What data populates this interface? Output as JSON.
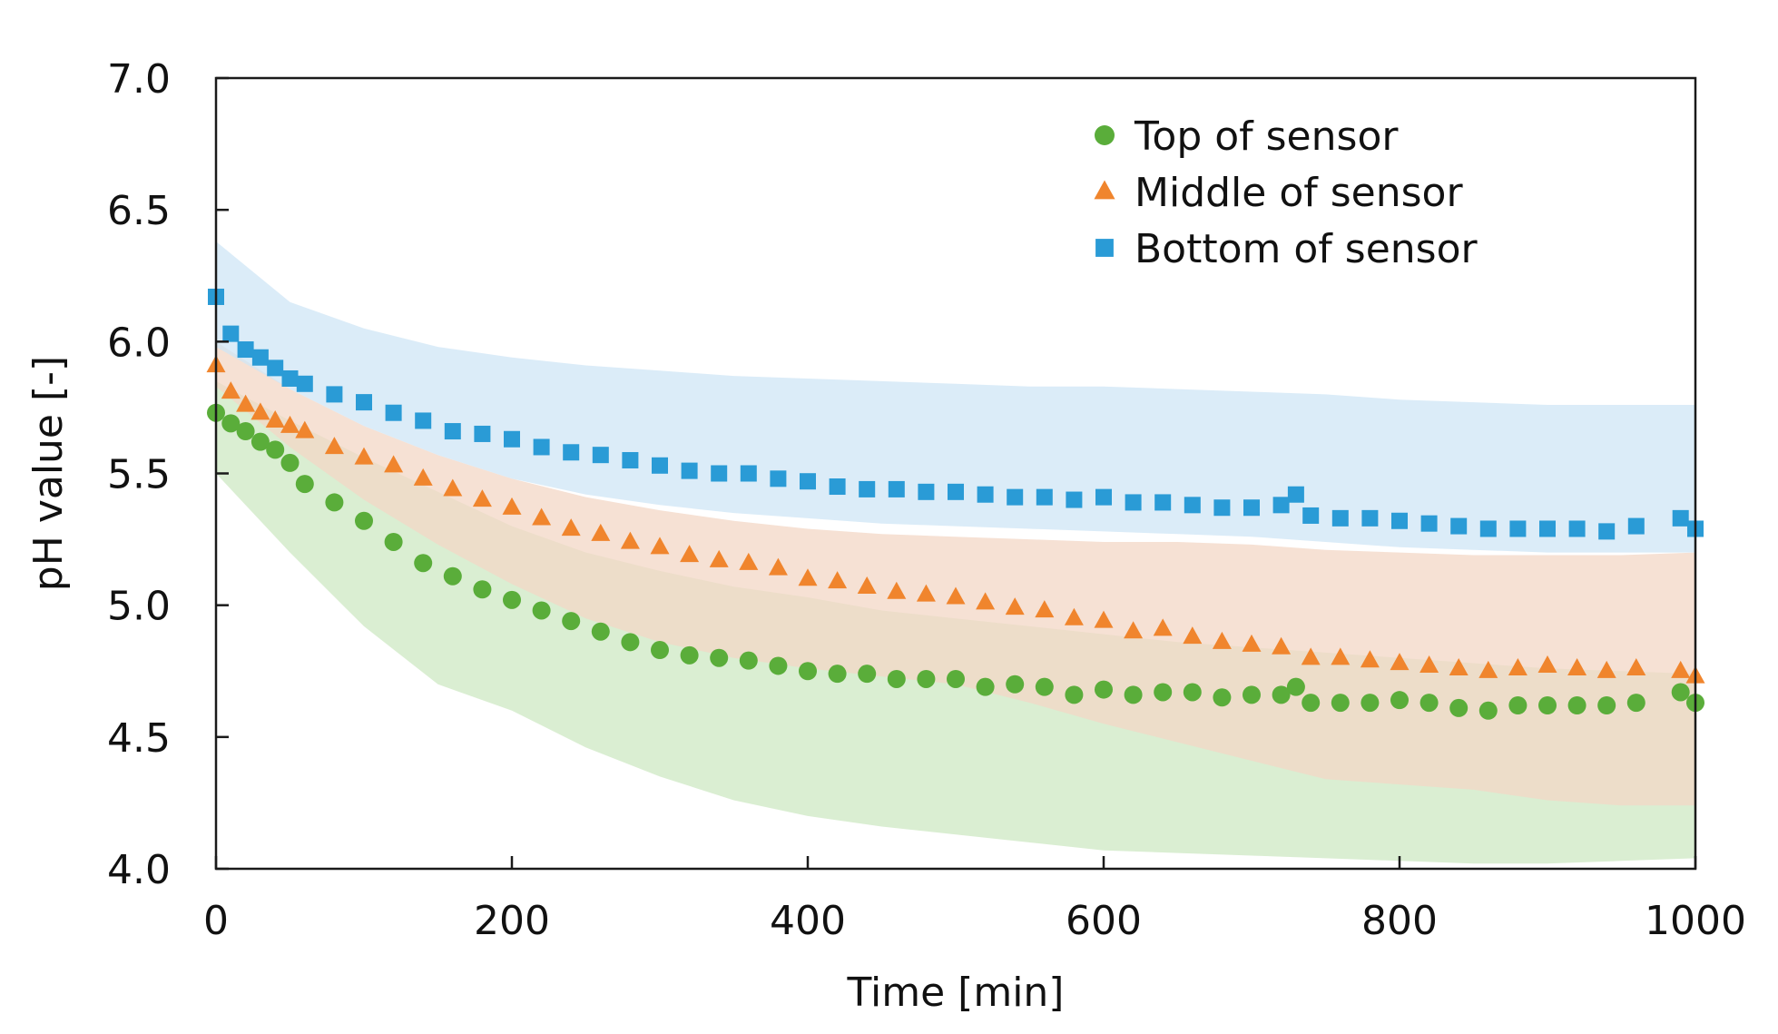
{
  "chart_data": {
    "type": "scatter",
    "title": "",
    "xlabel": "Time [min]",
    "ylabel": "pH value [-]",
    "xlim": [
      0,
      1000
    ],
    "ylim": [
      4.0,
      7.0
    ],
    "x_ticks": [
      0,
      200,
      400,
      600,
      800,
      1000
    ],
    "y_ticks": [
      4.0,
      4.5,
      5.0,
      5.5,
      6.0,
      6.5,
      7.0
    ],
    "x_tick_labels": [
      "0",
      "200",
      "400",
      "600",
      "800",
      "1000"
    ],
    "y_tick_labels": [
      "4.0",
      "4.5",
      "5.0",
      "5.5",
      "6.0",
      "6.5",
      "7.0"
    ],
    "grid": false,
    "legend_position": "top-right",
    "series": [
      {
        "name": "Top of sensor",
        "marker": "circle",
        "color": "#5aad3a",
        "band_color": "#cde8c3",
        "x": [
          0,
          10,
          20,
          30,
          40,
          50,
          60,
          80,
          100,
          120,
          140,
          160,
          180,
          200,
          220,
          240,
          260,
          280,
          300,
          320,
          340,
          360,
          380,
          400,
          420,
          440,
          460,
          480,
          500,
          520,
          540,
          560,
          580,
          600,
          620,
          640,
          660,
          680,
          700,
          720,
          730,
          740,
          760,
          780,
          800,
          820,
          840,
          860,
          880,
          900,
          920,
          940,
          960,
          990,
          1000
        ],
        "y": [
          5.73,
          5.69,
          5.66,
          5.62,
          5.59,
          5.54,
          5.46,
          5.39,
          5.32,
          5.24,
          5.16,
          5.11,
          5.06,
          5.02,
          4.98,
          4.94,
          4.9,
          4.86,
          4.83,
          4.81,
          4.8,
          4.79,
          4.77,
          4.75,
          4.74,
          4.74,
          4.72,
          4.72,
          4.72,
          4.69,
          4.7,
          4.69,
          4.66,
          4.68,
          4.66,
          4.67,
          4.67,
          4.65,
          4.66,
          4.66,
          4.69,
          4.63,
          4.63,
          4.63,
          4.64,
          4.63,
          4.61,
          4.6,
          4.62,
          4.62,
          4.62,
          4.62,
          4.63,
          4.67,
          4.63
        ],
        "band_x": [
          0,
          50,
          100,
          150,
          200,
          250,
          300,
          350,
          400,
          450,
          500,
          550,
          600,
          650,
          700,
          750,
          800,
          850,
          900,
          950,
          1000
        ],
        "band_upper": [
          5.85,
          5.7,
          5.56,
          5.43,
          5.3,
          5.2,
          5.13,
          5.07,
          5.03,
          4.98,
          4.95,
          4.92,
          4.89,
          4.86,
          4.84,
          4.82,
          4.8,
          4.78,
          4.76,
          4.75,
          4.74
        ],
        "band_lower": [
          5.5,
          5.2,
          4.92,
          4.7,
          4.6,
          4.46,
          4.35,
          4.26,
          4.2,
          4.16,
          4.13,
          4.1,
          4.07,
          4.06,
          4.05,
          4.04,
          4.03,
          4.02,
          4.02,
          4.03,
          4.04
        ]
      },
      {
        "name": "Middle of sensor",
        "marker": "triangle",
        "color": "#f0852d",
        "band_color": "#f3d7c6",
        "x": [
          0,
          10,
          20,
          30,
          40,
          50,
          60,
          80,
          100,
          120,
          140,
          160,
          180,
          200,
          220,
          240,
          260,
          280,
          300,
          320,
          340,
          360,
          380,
          400,
          420,
          440,
          460,
          480,
          500,
          520,
          540,
          560,
          580,
          600,
          620,
          640,
          660,
          680,
          700,
          720,
          740,
          760,
          780,
          800,
          820,
          840,
          860,
          880,
          900,
          920,
          940,
          960,
          990,
          1000
        ],
        "y": [
          5.91,
          5.81,
          5.76,
          5.73,
          5.7,
          5.68,
          5.66,
          5.6,
          5.56,
          5.53,
          5.48,
          5.44,
          5.4,
          5.37,
          5.33,
          5.29,
          5.27,
          5.24,
          5.22,
          5.19,
          5.17,
          5.16,
          5.14,
          5.1,
          5.09,
          5.07,
          5.05,
          5.04,
          5.03,
          5.01,
          4.99,
          4.98,
          4.95,
          4.94,
          4.9,
          4.91,
          4.88,
          4.86,
          4.85,
          4.84,
          4.8,
          4.8,
          4.79,
          4.78,
          4.77,
          4.76,
          4.75,
          4.76,
          4.77,
          4.76,
          4.75,
          4.76,
          4.75,
          4.73
        ],
        "band_x": [
          0,
          50,
          100,
          150,
          200,
          250,
          300,
          350,
          400,
          450,
          500,
          550,
          600,
          650,
          700,
          750,
          800,
          850,
          900,
          950,
          1000
        ],
        "band_upper": [
          6.0,
          5.82,
          5.68,
          5.57,
          5.48,
          5.41,
          5.36,
          5.32,
          5.29,
          5.27,
          5.26,
          5.25,
          5.24,
          5.24,
          5.23,
          5.21,
          5.2,
          5.19,
          5.19,
          5.19,
          5.2
        ],
        "band_lower": [
          5.83,
          5.6,
          5.4,
          5.23,
          5.08,
          4.95,
          4.86,
          4.8,
          4.76,
          4.73,
          4.7,
          4.63,
          4.55,
          4.48,
          4.41,
          4.34,
          4.32,
          4.3,
          4.26,
          4.24,
          4.24
        ]
      },
      {
        "name": "Bottom of sensor",
        "marker": "square",
        "color": "#2a9bd6",
        "band_color": "#cfe6f5",
        "x": [
          0,
          10,
          20,
          30,
          40,
          50,
          60,
          80,
          100,
          120,
          140,
          160,
          180,
          200,
          220,
          240,
          260,
          280,
          300,
          320,
          340,
          360,
          380,
          400,
          420,
          440,
          460,
          480,
          500,
          520,
          540,
          560,
          580,
          600,
          620,
          640,
          660,
          680,
          700,
          720,
          730,
          740,
          760,
          780,
          800,
          820,
          840,
          860,
          880,
          900,
          920,
          940,
          960,
          990,
          1000
        ],
        "y": [
          6.17,
          6.03,
          5.97,
          5.94,
          5.9,
          5.86,
          5.84,
          5.8,
          5.77,
          5.73,
          5.7,
          5.66,
          5.65,
          5.63,
          5.6,
          5.58,
          5.57,
          5.55,
          5.53,
          5.51,
          5.5,
          5.5,
          5.48,
          5.47,
          5.45,
          5.44,
          5.44,
          5.43,
          5.43,
          5.42,
          5.41,
          5.41,
          5.4,
          5.41,
          5.39,
          5.39,
          5.38,
          5.37,
          5.37,
          5.38,
          5.42,
          5.34,
          5.33,
          5.33,
          5.32,
          5.31,
          5.3,
          5.29,
          5.29,
          5.29,
          5.29,
          5.28,
          5.3,
          5.33,
          5.29
        ],
        "band_x": [
          0,
          50,
          100,
          150,
          200,
          250,
          300,
          350,
          400,
          450,
          500,
          550,
          600,
          650,
          700,
          750,
          800,
          850,
          900,
          950,
          1000
        ],
        "band_upper": [
          6.38,
          6.15,
          6.05,
          5.98,
          5.94,
          5.91,
          5.89,
          5.87,
          5.86,
          5.85,
          5.84,
          5.83,
          5.83,
          5.82,
          5.81,
          5.8,
          5.78,
          5.77,
          5.76,
          5.76,
          5.76
        ],
        "band_lower": [
          5.98,
          5.82,
          5.68,
          5.57,
          5.48,
          5.42,
          5.38,
          5.35,
          5.33,
          5.31,
          5.3,
          5.29,
          5.28,
          5.27,
          5.26,
          5.24,
          5.22,
          5.21,
          5.2,
          5.2,
          5.2
        ]
      }
    ]
  }
}
